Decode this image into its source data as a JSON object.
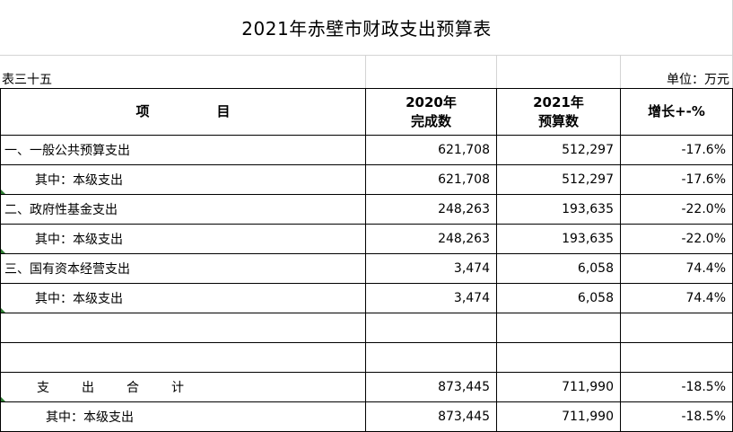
{
  "title": "2021年赤壁市财政支出预算表",
  "table_no": "表三十五",
  "unit": "单位：万元",
  "header": {
    "item": "项　　　　　目",
    "col2020_line1": "2020年",
    "col2020_line2": "完成数",
    "col2021_line1": "2021年",
    "col2021_line2": "预算数",
    "growth": "增长+-%"
  },
  "rows": [
    {
      "name": "一、一般公共预算支出",
      "v2020": "621,708",
      "v2021": "512,297",
      "growth": "-17.6%"
    },
    {
      "name": "其中：本级支出",
      "v2020": "621,708",
      "v2021": "512,297",
      "growth": "-17.6%"
    },
    {
      "name": "二、政府性基金支出",
      "v2020": "248,263",
      "v2021": "193,635",
      "growth": "-22.0%"
    },
    {
      "name": "其中：本级支出",
      "v2020": "248,263",
      "v2021": "193,635",
      "growth": "-22.0%"
    },
    {
      "name": "三、国有资本经营支出",
      "v2020": "3,474",
      "v2021": "6,058",
      "growth": "74.4%"
    },
    {
      "name": "其中：本级支出",
      "v2020": "3,474",
      "v2021": "6,058",
      "growth": "74.4%"
    },
    {
      "name": "",
      "v2020": "",
      "v2021": "",
      "growth": ""
    },
    {
      "name": "",
      "v2020": "",
      "v2021": "",
      "growth": ""
    },
    {
      "name_parts": [
        "支",
        "出",
        "合",
        "计"
      ],
      "v2020": "873,445",
      "v2021": "711,990",
      "growth": "-18.5%"
    },
    {
      "name": "其中：本级支出",
      "v2020": "873,445",
      "v2021": "711,990",
      "growth": "-18.5%"
    }
  ],
  "colors": {
    "grid": "#000000",
    "light_grid": "#d4d4d4",
    "cell_flag": "#2e7d32"
  }
}
